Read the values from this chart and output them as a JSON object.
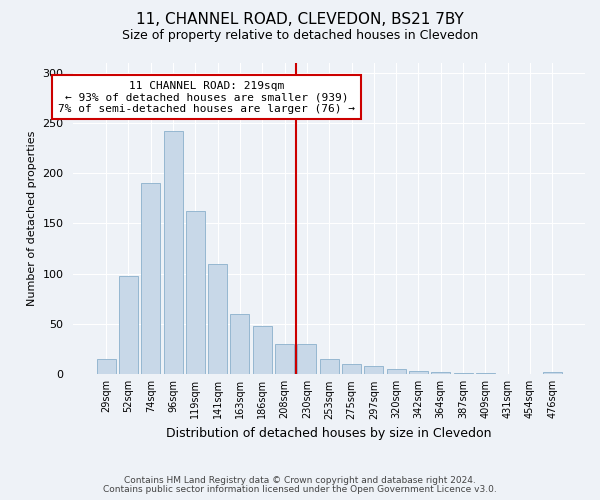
{
  "title1": "11, CHANNEL ROAD, CLEVEDON, BS21 7BY",
  "title2": "Size of property relative to detached houses in Clevedon",
  "xlabel": "Distribution of detached houses by size in Clevedon",
  "ylabel": "Number of detached properties",
  "categories": [
    "29sqm",
    "52sqm",
    "74sqm",
    "96sqm",
    "119sqm",
    "141sqm",
    "163sqm",
    "186sqm",
    "208sqm",
    "230sqm",
    "253sqm",
    "275sqm",
    "297sqm",
    "320sqm",
    "342sqm",
    "364sqm",
    "387sqm",
    "409sqm",
    "431sqm",
    "454sqm",
    "476sqm"
  ],
  "values": [
    15,
    98,
    190,
    242,
    162,
    110,
    60,
    48,
    30,
    30,
    15,
    10,
    8,
    5,
    3,
    2,
    1,
    1,
    0,
    0,
    2
  ],
  "bar_color": "#c8d8e8",
  "bar_edge_color": "#8ab0cc",
  "marker_index": 8.5,
  "marker_color": "#cc0000",
  "annotation_text": "11 CHANNEL ROAD: 219sqm\n← 93% of detached houses are smaller (939)\n7% of semi-detached houses are larger (76) →",
  "annotation_box_color": "#ffffff",
  "annotation_box_edge": "#cc0000",
  "footer1": "Contains HM Land Registry data © Crown copyright and database right 2024.",
  "footer2": "Contains public sector information licensed under the Open Government Licence v3.0.",
  "bg_color": "#eef2f7",
  "grid_color": "#ffffff",
  "ylim": [
    0,
    310
  ],
  "yticks": [
    0,
    50,
    100,
    150,
    200,
    250,
    300
  ]
}
